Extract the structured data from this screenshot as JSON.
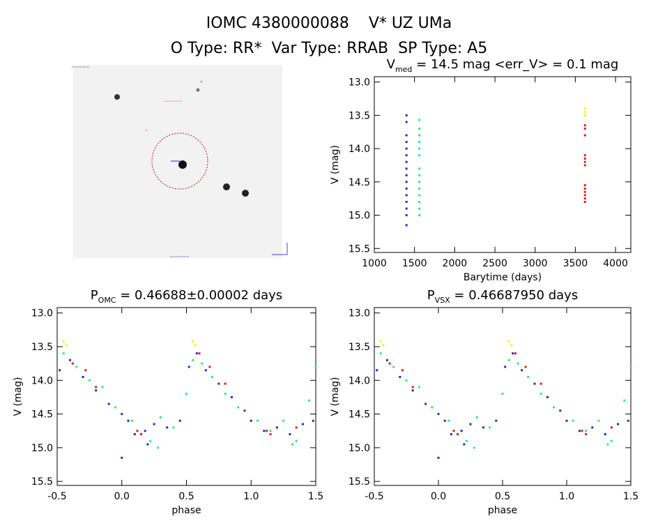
{
  "header": {
    "title_line1": "IOMC 4380000088    V* UZ UMa",
    "title_line2": "O Type: RR*  Var Type: RRAB  SP Type: A5"
  },
  "chart_data": [
    {
      "type": "scatter",
      "title_main": "V",
      "title_sub": "med",
      "title_rest": " = 14.5 mag <err_V> = 0.1 mag",
      "x_label": "Barytime (days)",
      "y_label": "V (mag)",
      "xlim": [
        1000,
        4190
      ],
      "xticks": [
        1000,
        1500,
        2000,
        2500,
        3000,
        3500,
        4000
      ],
      "ylim": [
        12.92,
        15.56
      ],
      "y_inverted": true,
      "yticks": [
        {
          "value": 13,
          "label": "13.0"
        },
        13.5,
        {
          "value": 14,
          "label": "14.0"
        },
        14.5,
        {
          "value": 15,
          "label": "15.0"
        },
        15.5
      ],
      "series": [
        {
          "color": "#1f2fbf",
          "x": [
            1400,
            1400,
            1400,
            1400,
            1400,
            1400,
            1400,
            1400,
            1400,
            1400,
            1400,
            1400,
            1400,
            1400,
            1400,
            1400
          ],
          "values": [
            13.5,
            13.6,
            13.8,
            13.9,
            14.0,
            14.1,
            14.2,
            14.3,
            14.4,
            14.5,
            14.6,
            14.7,
            14.8,
            14.9,
            15.0,
            15.15
          ]
        },
        {
          "color": "#2ee88a",
          "x": [
            1560,
            1560,
            1560,
            1560,
            1560,
            1560,
            1560,
            1560,
            1560,
            1560,
            1560,
            1560,
            1560,
            1560
          ],
          "values": [
            13.57,
            13.7,
            13.8,
            13.9,
            14.0,
            14.1,
            14.3,
            14.4,
            14.5,
            14.6,
            14.7,
            14.8,
            14.9,
            15.0
          ]
        },
        {
          "color": "#d81e1e",
          "x": [
            3620,
            3620,
            3620,
            3620,
            3620,
            3620,
            3620,
            3620,
            3620,
            3620,
            3620,
            3620,
            3620
          ],
          "values": [
            13.65,
            13.7,
            13.8,
            14.1,
            14.15,
            14.2,
            14.25,
            14.55,
            14.6,
            14.65,
            14.7,
            14.75,
            14.8
          ]
        },
        {
          "color": "#f0f020",
          "x": [
            3620,
            3620,
            3620
          ],
          "values": [
            13.4,
            13.45,
            13.5
          ]
        }
      ]
    },
    {
      "type": "scatter",
      "title_main": "P",
      "title_sub": "OMC",
      "title_rest": " = 0.46688±0.00002 days",
      "x_label": "phase",
      "y_label": "V (mag)",
      "xlim": [
        -0.5,
        1.5
      ],
      "xticks": [
        -0.5,
        {
          "value": 0,
          "label": "0.0"
        },
        0.5,
        {
          "value": 1,
          "label": "1.0"
        },
        1.5
      ],
      "ylim": [
        12.92,
        15.56
      ],
      "y_inverted": true,
      "yticks": [
        {
          "value": 13,
          "label": "13.0"
        },
        13.5,
        {
          "value": 14,
          "label": "14.0"
        },
        14.5,
        {
          "value": 15,
          "label": "15.0"
        },
        15.5
      ],
      "series": [
        {
          "color": "#1f2fbf",
          "x": [
            -0.48,
            -0.4,
            -0.3,
            -0.2,
            -0.1,
            0.0,
            0.05,
            0.1,
            0.18,
            0.25,
            0.35,
            0.45,
            0.52,
            0.58,
            0.65,
            0.75,
            0.85,
            0.95,
            1.0,
            1.1,
            1.2,
            1.3,
            1.4,
            1.48,
            0.0,
            0.2
          ],
          "values": [
            13.85,
            13.7,
            13.95,
            14.15,
            14.35,
            14.5,
            14.6,
            14.8,
            14.75,
            14.65,
            14.7,
            14.6,
            13.8,
            13.6,
            13.85,
            14.05,
            14.25,
            14.45,
            14.6,
            14.75,
            14.7,
            14.8,
            14.65,
            14.6,
            15.15,
            14.95
          ]
        },
        {
          "color": "#2ee88a",
          "x": [
            -0.45,
            -0.35,
            -0.25,
            -0.15,
            -0.05,
            0.08,
            0.15,
            0.22,
            0.3,
            0.4,
            0.5,
            0.55,
            0.62,
            0.7,
            0.8,
            0.9,
            1.05,
            1.15,
            1.25,
            1.35,
            1.45,
            1.5,
            0.28,
            1.32
          ],
          "values": [
            13.6,
            13.8,
            14.0,
            14.1,
            14.4,
            14.6,
            14.8,
            14.9,
            14.55,
            14.7,
            14.2,
            13.7,
            13.75,
            13.95,
            14.2,
            14.4,
            14.6,
            14.75,
            14.6,
            14.9,
            14.3,
            13.8,
            15.0,
            14.95
          ]
        },
        {
          "color": "#d81e1e",
          "x": [
            -0.38,
            -0.28,
            -0.2,
            0.12,
            0.15,
            0.6,
            0.68,
            0.8,
            1.12,
            1.15,
            1.35
          ],
          "values": [
            13.75,
            13.85,
            14.1,
            14.75,
            14.8,
            13.6,
            13.8,
            14.05,
            14.75,
            14.8,
            14.7
          ]
        },
        {
          "color": "#f0f020",
          "x": [
            -0.45,
            -0.43,
            0.55,
            0.57
          ],
          "values": [
            13.42,
            13.48,
            13.42,
            13.48
          ]
        }
      ]
    },
    {
      "type": "scatter",
      "title_main": "P",
      "title_sub": "VSX",
      "title_rest": " = 0.46687950 days",
      "x_label": "phase",
      "y_label": "V (mag)",
      "xlim": [
        -0.5,
        1.5
      ],
      "xticks": [
        -0.5,
        {
          "value": 0,
          "label": "0.0"
        },
        0.5,
        {
          "value": 1,
          "label": "1.0"
        },
        1.5
      ],
      "ylim": [
        12.92,
        15.56
      ],
      "y_inverted": true,
      "yticks": [
        {
          "value": 13,
          "label": "13.0"
        },
        13.5,
        {
          "value": 14,
          "label": "14.0"
        },
        14.5,
        {
          "value": 15,
          "label": "15.0"
        },
        15.5
      ],
      "series": [
        {
          "color": "#1f2fbf",
          "x": [
            -0.48,
            -0.4,
            -0.3,
            -0.2,
            -0.1,
            0.0,
            0.05,
            0.1,
            0.18,
            0.25,
            0.35,
            0.45,
            0.52,
            0.58,
            0.65,
            0.75,
            0.85,
            0.95,
            1.0,
            1.1,
            1.2,
            1.3,
            1.4,
            1.48,
            0.0,
            0.2
          ],
          "values": [
            13.85,
            13.7,
            13.95,
            14.15,
            14.35,
            14.5,
            14.6,
            14.8,
            14.75,
            14.65,
            14.7,
            14.6,
            13.8,
            13.6,
            13.85,
            14.05,
            14.25,
            14.45,
            14.6,
            14.75,
            14.7,
            14.8,
            14.65,
            14.6,
            15.15,
            14.95
          ]
        },
        {
          "color": "#2ee88a",
          "x": [
            -0.45,
            -0.35,
            -0.25,
            -0.15,
            -0.05,
            0.08,
            0.15,
            0.22,
            0.3,
            0.4,
            0.5,
            0.55,
            0.62,
            0.7,
            0.8,
            0.9,
            1.05,
            1.15,
            1.25,
            1.35,
            1.45,
            1.5,
            0.28,
            1.32
          ],
          "values": [
            13.6,
            13.8,
            14.0,
            14.1,
            14.4,
            14.6,
            14.8,
            14.9,
            14.55,
            14.7,
            14.2,
            13.7,
            13.75,
            13.95,
            14.2,
            14.4,
            14.6,
            14.75,
            14.6,
            14.9,
            14.3,
            13.8,
            15.0,
            14.95
          ]
        },
        {
          "color": "#d81e1e",
          "x": [
            -0.38,
            -0.28,
            -0.2,
            0.12,
            0.15,
            0.6,
            0.68,
            0.8,
            1.12,
            1.15,
            1.35
          ],
          "values": [
            13.75,
            13.85,
            14.1,
            14.75,
            14.8,
            13.6,
            13.8,
            14.05,
            14.75,
            14.8,
            14.7
          ]
        },
        {
          "color": "#f0f020",
          "x": [
            -0.45,
            -0.43,
            0.55,
            0.57
          ],
          "values": [
            13.42,
            13.48,
            13.42,
            13.48
          ]
        }
      ]
    }
  ]
}
